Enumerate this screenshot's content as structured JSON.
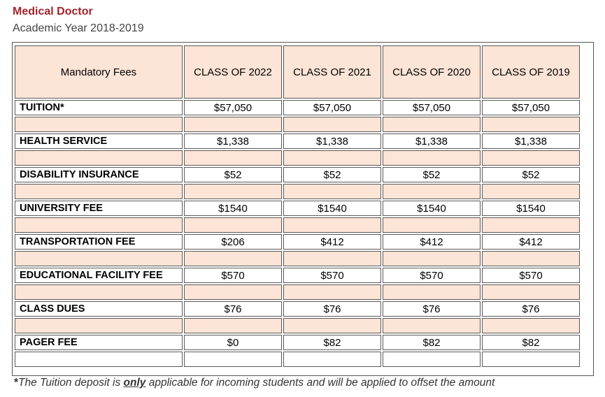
{
  "title": "Medical Doctor",
  "subtitle": "Academic Year 2018-2019",
  "table": {
    "headers": [
      "Mandatory Fees",
      "CLASS OF 2022",
      "CLASS OF 2021",
      "CLASS OF 2020",
      "CLASS OF 2019"
    ],
    "rows": [
      {
        "label": "TUITION*",
        "values": [
          "$57,050",
          "$57,050",
          "$57,050",
          "$57,050"
        ]
      },
      {
        "label": "HEALTH SERVICE",
        "values": [
          "$1,338",
          "$1,338",
          "$1,338",
          "$1,338"
        ]
      },
      {
        "label": "DISABILITY INSURANCE",
        "values": [
          "$52",
          "$52",
          "$52",
          "$52"
        ]
      },
      {
        "label": "UNIVERSITY FEE",
        "values": [
          "$1540",
          "$1540",
          "$1540",
          "$1540"
        ]
      },
      {
        "label": "TRANSPORTATION FEE",
        "values": [
          "$206",
          "$412",
          "$412",
          "$412"
        ]
      },
      {
        "label": "EDUCATIONAL FACILITY FEE",
        "values": [
          "$570",
          "$570",
          "$570",
          "$570"
        ]
      },
      {
        "label": "CLASS DUES",
        "values": [
          "$76",
          "$76",
          "$76",
          "$76"
        ]
      },
      {
        "label": "PAGER FEE",
        "values": [
          "$0",
          "$82",
          "$82",
          "$82"
        ]
      }
    ]
  },
  "colors": {
    "title": "#a3242c",
    "header_fill": "#fce4d6",
    "separator_fill": "#fce4d6",
    "border": "#5a5a5a"
  },
  "footnote": {
    "star": "*",
    "before": "The Tuition deposit is ",
    "emphasis": "only",
    "after": " applicable for incoming students and will be applied to offset the amount"
  }
}
